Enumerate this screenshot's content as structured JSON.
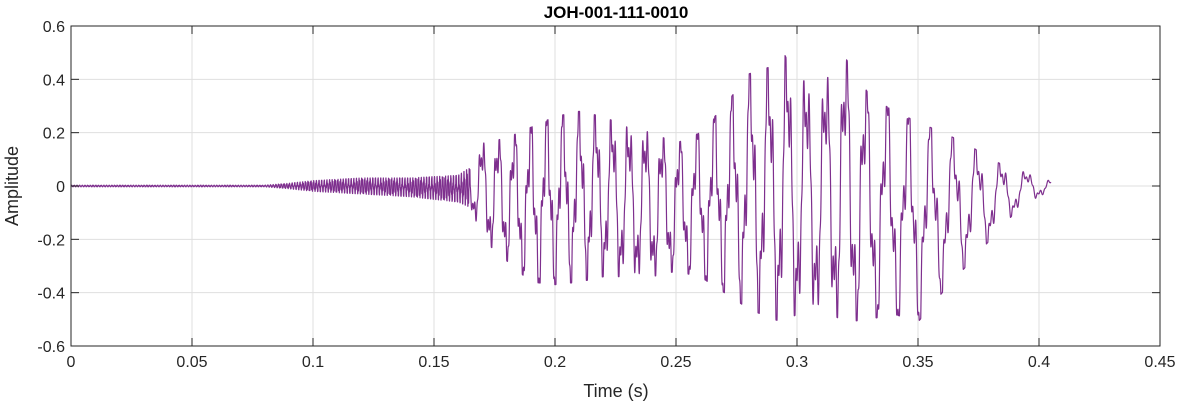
{
  "chart_data": {
    "type": "line",
    "title": "JOH-001-111-0010",
    "xlabel": "Time (s)",
    "ylabel": "Amplitude",
    "xlim": [
      0,
      0.45
    ],
    "ylim": [
      -0.6,
      0.6
    ],
    "xticks": [
      0,
      0.05,
      0.1,
      0.15,
      0.2,
      0.25,
      0.3,
      0.35,
      0.4,
      0.45
    ],
    "xtick_labels": [
      "0",
      "0.05",
      "0.1",
      "0.15",
      "0.2",
      "0.25",
      "0.3",
      "0.35",
      "0.4",
      "0.45"
    ],
    "yticks": [
      -0.6,
      -0.4,
      -0.2,
      0,
      0.2,
      0.4,
      0.6
    ],
    "ytick_labels": [
      "-0.6",
      "-0.4",
      "-0.2",
      "0",
      "0.2",
      "0.4",
      "0.6"
    ],
    "grid": true,
    "series_color": "#7e2f8e",
    "signal_end": 0.405,
    "envelope": {
      "t": [
        0,
        0.08,
        0.09,
        0.1,
        0.12,
        0.14,
        0.16,
        0.165,
        0.17,
        0.18,
        0.19,
        0.2,
        0.21,
        0.22,
        0.23,
        0.24,
        0.25,
        0.26,
        0.27,
        0.28,
        0.29,
        0.295,
        0.3,
        0.31,
        0.32,
        0.33,
        0.34,
        0.35,
        0.36,
        0.37,
        0.38,
        0.39,
        0.4,
        0.405
      ],
      "max": [
        0.003,
        0.003,
        0.01,
        0.02,
        0.03,
        0.03,
        0.04,
        0.07,
        0.16,
        0.18,
        0.22,
        0.26,
        0.28,
        0.26,
        0.22,
        0.2,
        0.16,
        0.2,
        0.3,
        0.42,
        0.45,
        0.49,
        0.4,
        0.38,
        0.48,
        0.34,
        0.28,
        0.24,
        0.2,
        0.16,
        0.1,
        0.06,
        0.04,
        0.02
      ],
      "min": [
        -0.003,
        -0.003,
        -0.01,
        -0.02,
        -0.03,
        -0.04,
        -0.06,
        -0.08,
        -0.2,
        -0.28,
        -0.36,
        -0.37,
        -0.36,
        -0.34,
        -0.34,
        -0.34,
        -0.32,
        -0.34,
        -0.4,
        -0.46,
        -0.5,
        -0.51,
        -0.48,
        -0.46,
        -0.51,
        -0.5,
        -0.48,
        -0.51,
        -0.4,
        -0.3,
        -0.2,
        -0.1,
        -0.04,
        -0.02
      ]
    }
  }
}
